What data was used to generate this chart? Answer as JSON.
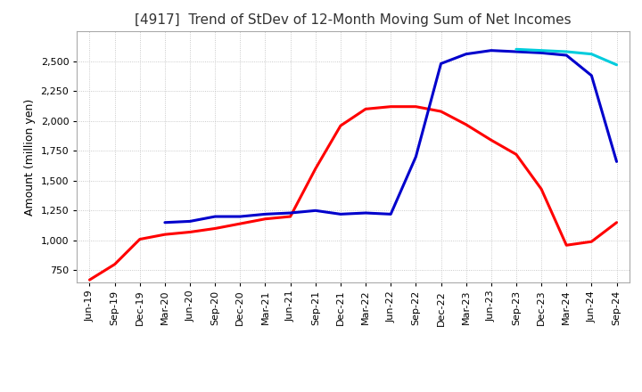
{
  "title": "[4917]  Trend of StDev of 12-Month Moving Sum of Net Incomes",
  "ylabel": "Amount (million yen)",
  "ylim": [
    650,
    2750
  ],
  "yticks": [
    750,
    1000,
    1250,
    1500,
    1750,
    2000,
    2250,
    2500
  ],
  "background_color": "#ffffff",
  "grid_color": "#bbbbbb",
  "x_labels": [
    "Jun-19",
    "Sep-19",
    "Dec-19",
    "Mar-20",
    "Jun-20",
    "Sep-20",
    "Dec-20",
    "Mar-21",
    "Jun-21",
    "Sep-21",
    "Dec-21",
    "Mar-22",
    "Jun-22",
    "Sep-22",
    "Dec-22",
    "Mar-23",
    "Jun-23",
    "Sep-23",
    "Dec-23",
    "Mar-24",
    "Jun-24",
    "Sep-24"
  ],
  "series": {
    "3 Years": {
      "color": "#ff0000",
      "values": [
        670,
        800,
        1010,
        1050,
        1070,
        1100,
        1140,
        1180,
        1200,
        1600,
        1960,
        2100,
        2120,
        2120,
        2080,
        1970,
        1840,
        1720,
        1430,
        960,
        990,
        1150
      ]
    },
    "5 Years": {
      "color": "#0000cc",
      "values": [
        null,
        null,
        null,
        1150,
        1160,
        1200,
        1200,
        1220,
        1230,
        1250,
        1220,
        1230,
        1220,
        1700,
        2480,
        2560,
        2590,
        2580,
        2570,
        2550,
        2380,
        1660
      ]
    },
    "7 Years": {
      "color": "#00ccdd",
      "values": [
        null,
        null,
        null,
        null,
        null,
        null,
        null,
        null,
        null,
        null,
        null,
        null,
        null,
        null,
        null,
        null,
        null,
        2600,
        2590,
        2580,
        2560,
        2470
      ]
    },
    "10 Years": {
      "color": "#008800",
      "values": [
        null,
        null,
        null,
        null,
        null,
        null,
        null,
        null,
        null,
        null,
        null,
        null,
        null,
        null,
        null,
        null,
        null,
        null,
        null,
        null,
        null,
        null
      ]
    }
  },
  "title_color": "#333333",
  "title_fontsize": 11,
  "axis_label_fontsize": 9,
  "tick_fontsize": 8,
  "legend_fontsize": 9,
  "line_width": 2.2
}
